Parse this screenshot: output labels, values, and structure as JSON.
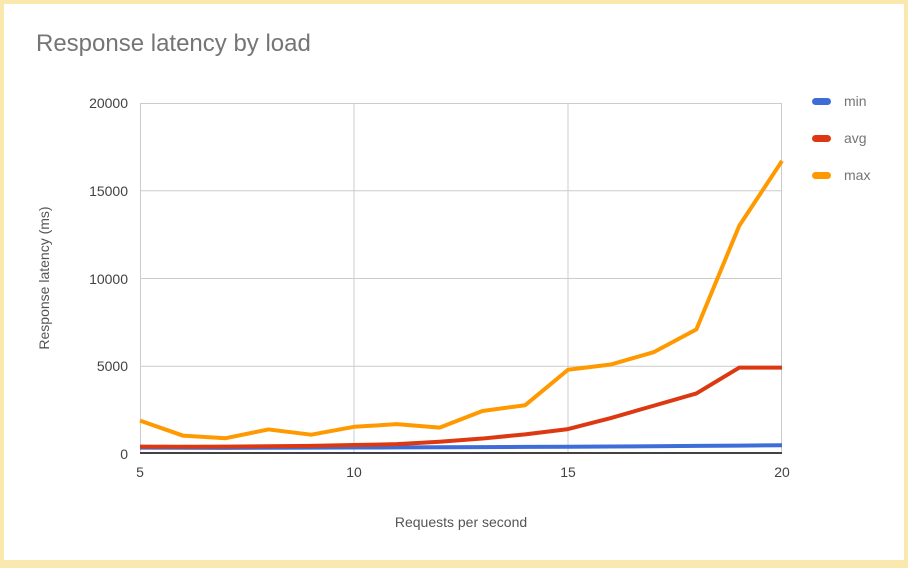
{
  "page": {
    "border_color": "#FAE9AE",
    "background_color": "#FFFFFF"
  },
  "chart_data": {
    "type": "line",
    "title": "Response latency by load",
    "xlabel": "Requests per second",
    "ylabel": "Response latency (ms)",
    "xlim": [
      5,
      20
    ],
    "ylim": [
      0,
      20000
    ],
    "x_ticks": [
      5,
      10,
      15,
      20
    ],
    "y_ticks": [
      0,
      5000,
      10000,
      15000,
      20000
    ],
    "grid": true,
    "legend_position": "right",
    "x": [
      5,
      6,
      7,
      8,
      9,
      10,
      11,
      12,
      13,
      14,
      15,
      16,
      17,
      18,
      19,
      20
    ],
    "series": [
      {
        "name": "min",
        "color": "#3E6DD8",
        "values": [
          360,
          355,
          350,
          355,
          360,
          370,
          375,
          385,
          395,
          405,
          415,
          425,
          440,
          460,
          480,
          500
        ]
      },
      {
        "name": "avg",
        "color": "#DC3912",
        "values": [
          420,
          415,
          420,
          440,
          460,
          510,
          560,
          700,
          880,
          1120,
          1420,
          2050,
          2750,
          3450,
          4920,
          4920
        ]
      },
      {
        "name": "max",
        "color": "#FF9900",
        "values": [
          1900,
          1050,
          900,
          1400,
          1100,
          1550,
          1700,
          1500,
          2450,
          2780,
          4800,
          5100,
          5800,
          7100,
          13000,
          16700
        ]
      }
    ],
    "styles": {
      "gridline_color": "#CCCCCC",
      "baseline_color": "#424242",
      "title_color": "#757575",
      "tick_color": "#424242",
      "axis_title_color": "#545454",
      "legend_text_color": "#757575",
      "line_width": 4
    }
  }
}
